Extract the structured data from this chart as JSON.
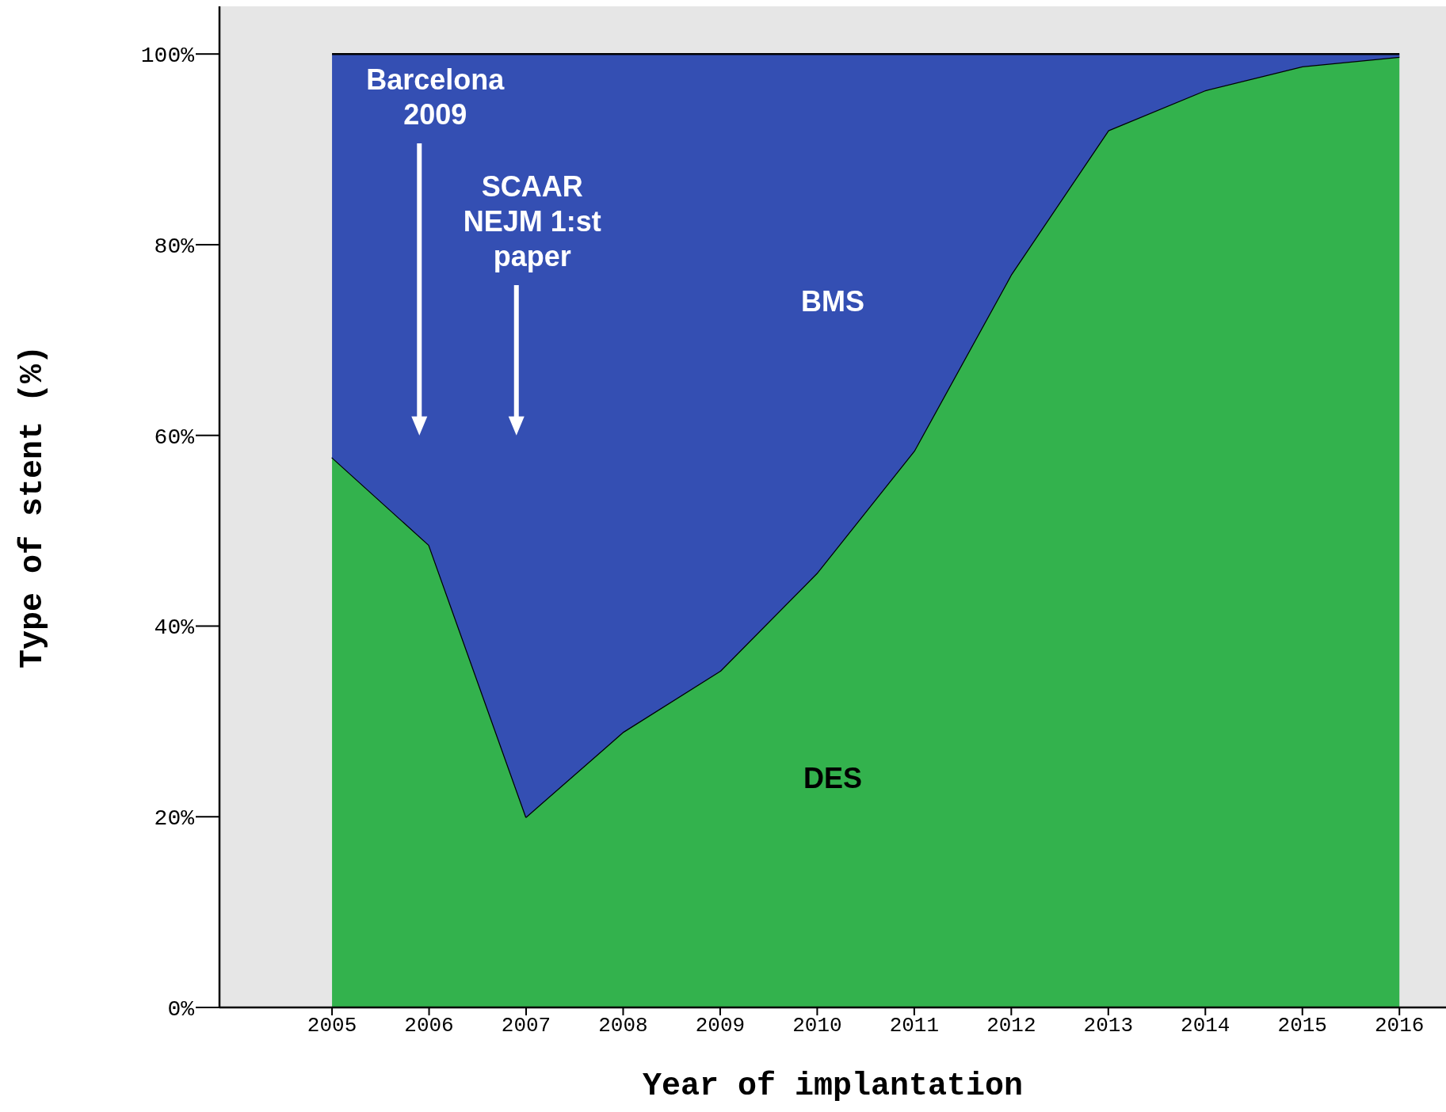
{
  "chart_data": {
    "type": "area",
    "stacked": true,
    "xlabel": "Year of implantation",
    "ylabel": "Type of stent (%)",
    "x": [
      2005,
      2006,
      2007,
      2008,
      2009,
      2010,
      2011,
      2012,
      2013,
      2014,
      2015,
      2016
    ],
    "series": [
      {
        "name": "DES",
        "color": "#33b24d",
        "values": [
          57.7,
          48.5,
          20.0,
          28.9,
          35.3,
          45.6,
          58.4,
          76.9,
          92.0,
          96.2,
          98.7,
          99.7
        ]
      },
      {
        "name": "BMS",
        "color": "#344fb3",
        "values": [
          42.3,
          51.5,
          80.0,
          71.1,
          64.7,
          54.4,
          41.6,
          23.1,
          8.0,
          3.8,
          1.3,
          0.3
        ]
      }
    ],
    "xlim": [
      2003.84,
      2016.48
    ],
    "xticks": [
      2005,
      2006,
      2007,
      2008,
      2009,
      2010,
      2011,
      2012,
      2013,
      2014,
      2015,
      2016
    ],
    "ylim": [
      0,
      105
    ],
    "yticks": [
      {
        "value": 0,
        "label": "0%"
      },
      {
        "value": 20,
        "label": "20%"
      },
      {
        "value": 40,
        "label": "40%"
      },
      {
        "value": 60,
        "label": "60%"
      },
      {
        "value": 80,
        "label": "80%"
      },
      {
        "value": 100,
        "label": "100%"
      }
    ],
    "annotations": [
      "Barcelona\n2009",
      "SCAAR\nNEJM 1:st\npaper"
    ],
    "grid": false
  }
}
